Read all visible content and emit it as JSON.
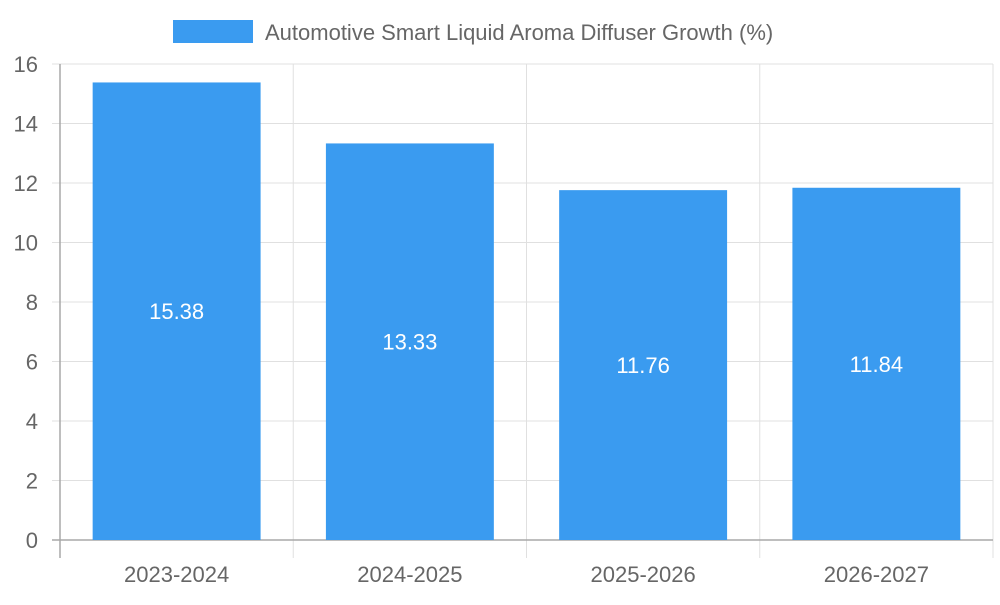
{
  "chart_data": {
    "type": "bar",
    "legend": {
      "label": "Automotive Smart Liquid Aroma Diffuser Growth (%)",
      "position": "top-center"
    },
    "categories": [
      "2023-2024",
      "2024-2025",
      "2025-2026",
      "2026-2027"
    ],
    "series": [
      {
        "name": "Automotive Smart Liquid Aroma Diffuser Growth (%)",
        "values": [
          15.38,
          13.33,
          11.76,
          11.84
        ],
        "color": "#3a9bf0"
      }
    ],
    "data_labels": [
      "15.38",
      "13.33",
      "11.76",
      "11.84"
    ],
    "ylim": [
      0,
      16
    ],
    "y_ticks": [
      0,
      2,
      4,
      6,
      8,
      10,
      12,
      14,
      16
    ],
    "grid": true,
    "colors": {
      "bar": "#3a9bf0",
      "grid": "#e0e0e0",
      "axis": "#a8a8a8",
      "tick_text": "#666666",
      "data_label_text": "#ffffff"
    }
  }
}
